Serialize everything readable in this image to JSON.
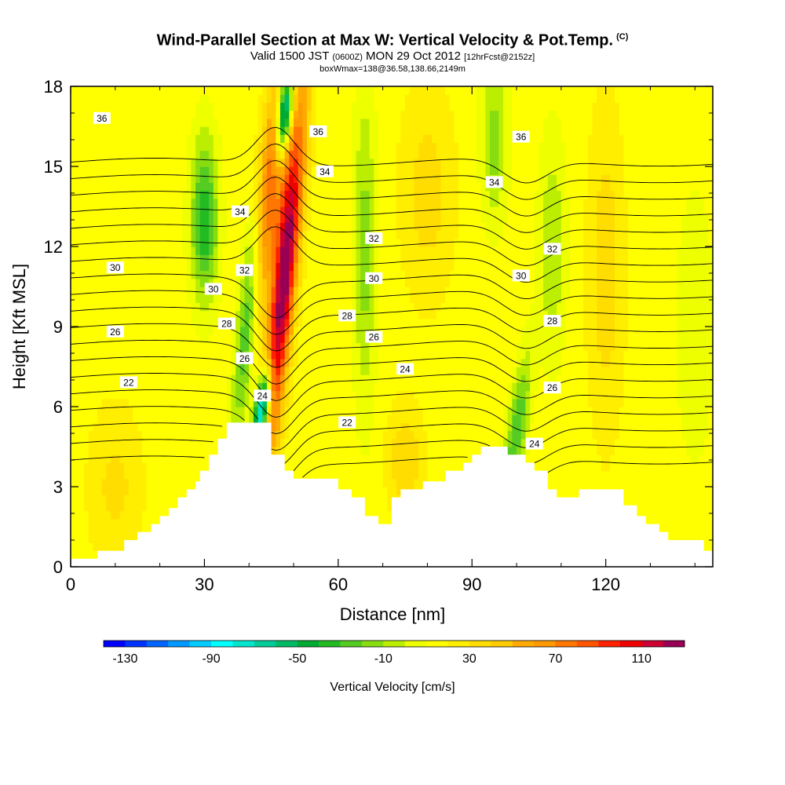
{
  "chart_data": {
    "type": "heatmap",
    "title": "Wind-Parallel Section at Max W: Vertical Velocity & Pot.Temp.",
    "copyright": "(C)",
    "subtitle_main": "Valid 1500 JST",
    "subtitle_utc": "(0600Z)",
    "subtitle_date": "MON 29 Oct 2012",
    "subtitle_fcst": "[12hrFcst@2152z]",
    "subtitle2": "boxWmax=138@36.58,138.66,2149m",
    "xlabel": "Distance [nm]",
    "ylabel": "Height [Kft MSL]",
    "xlim": [
      0,
      144
    ],
    "ylim": [
      0,
      18
    ],
    "xticks": [
      "0",
      "30",
      "60",
      "90",
      "120"
    ],
    "xtick_values": [
      0,
      30,
      60,
      90,
      120
    ],
    "yticks": [
      "0",
      "3",
      "6",
      "9",
      "12",
      "15",
      "18"
    ],
    "ytick_values": [
      0,
      3,
      6,
      9,
      12,
      15,
      18
    ],
    "colorbar": {
      "label": "Vertical Velocity [cm/s]",
      "range": [
        -140,
        130
      ],
      "step": 10,
      "tick_labels": [
        "-130",
        "-90",
        "-50",
        "-10",
        "30",
        "70",
        "110"
      ],
      "tick_values": [
        -130,
        -90,
        -50,
        -10,
        30,
        70,
        110
      ],
      "colors": [
        "#0000ff",
        "#0033ff",
        "#0066ff",
        "#0099ff",
        "#00ccff",
        "#00ffff",
        "#00e5cc",
        "#00cc99",
        "#00bb66",
        "#00aa33",
        "#22bb22",
        "#55cc22",
        "#88dd11",
        "#bbee00",
        "#eeff00",
        "#ffff00",
        "#ffee00",
        "#ffdd00",
        "#ffcc00",
        "#ffaa00",
        "#ff9900",
        "#ff7700",
        "#ff5500",
        "#ff2200",
        "#ee0000",
        "#cc0033",
        "#990055"
      ]
    },
    "contour_labels": [
      {
        "text": "36",
        "x": 7,
        "y": 16.8
      },
      {
        "text": "36",
        "x": 55.5,
        "y": 16.3
      },
      {
        "text": "36",
        "x": 101,
        "y": 16.1
      },
      {
        "text": "34",
        "x": 57,
        "y": 14.8
      },
      {
        "text": "34",
        "x": 95,
        "y": 14.4
      },
      {
        "text": "34",
        "x": 38,
        "y": 13.3
      },
      {
        "text": "32",
        "x": 68,
        "y": 12.3
      },
      {
        "text": "32",
        "x": 108,
        "y": 11.9
      },
      {
        "text": "32",
        "x": 39,
        "y": 11.1
      },
      {
        "text": "30",
        "x": 10,
        "y": 11.2
      },
      {
        "text": "30",
        "x": 32,
        "y": 10.4
      },
      {
        "text": "30",
        "x": 68,
        "y": 10.8
      },
      {
        "text": "30",
        "x": 101,
        "y": 10.9
      },
      {
        "text": "28",
        "x": 35,
        "y": 9.1
      },
      {
        "text": "28",
        "x": 62,
        "y": 9.4
      },
      {
        "text": "28",
        "x": 108,
        "y": 9.2
      },
      {
        "text": "26",
        "x": 10,
        "y": 8.8
      },
      {
        "text": "26",
        "x": 39,
        "y": 7.8
      },
      {
        "text": "26",
        "x": 68,
        "y": 8.6
      },
      {
        "text": "26",
        "x": 108,
        "y": 6.7
      },
      {
        "text": "24",
        "x": 43,
        "y": 6.4
      },
      {
        "text": "24",
        "x": 75,
        "y": 7.4
      },
      {
        "text": "24",
        "x": 104,
        "y": 4.6
      },
      {
        "text": "22",
        "x": 13,
        "y": 6.9
      },
      {
        "text": "22",
        "x": 62,
        "y": 5.4
      }
    ],
    "terrain_kft": [
      0.3,
      0.3,
      0.3,
      0.3,
      0.3,
      0.3,
      0.6,
      0.6,
      0.6,
      0.6,
      0.6,
      0.6,
      1.0,
      1.0,
      1.0,
      1.3,
      1.3,
      1.3,
      1.6,
      1.6,
      1.9,
      1.9,
      2.2,
      2.2,
      2.6,
      2.6,
      2.9,
      2.9,
      3.2,
      3.6,
      3.6,
      4.2,
      4.2,
      4.8,
      4.8,
      5.4,
      5.4,
      5.4,
      5.4,
      5.4,
      5.4,
      5.4,
      5.4,
      5.4,
      5.4,
      4.2,
      4.2,
      4.2,
      3.6,
      3.6,
      3.3,
      3.3,
      3.3,
      3.3,
      3.3,
      3.3,
      3.3,
      3.3,
      3.3,
      3.3,
      2.9,
      2.9,
      2.9,
      2.6,
      2.6,
      2.6,
      1.9,
      1.9,
      1.9,
      1.6,
      1.6,
      1.6,
      2.6,
      2.6,
      2.9,
      2.9,
      2.9,
      2.9,
      2.9,
      3.2,
      3.2,
      3.2,
      3.2,
      3.2,
      3.6,
      3.6,
      3.6,
      3.6,
      3.9,
      3.9,
      4.2,
      4.2,
      4.5,
      4.5,
      4.5,
      4.5,
      4.5,
      4.5,
      4.2,
      4.2,
      4.2,
      4.2,
      3.9,
      3.9,
      3.6,
      3.6,
      3.6,
      2.9,
      2.9,
      2.6,
      2.6,
      2.6,
      2.6,
      2.6,
      2.9,
      2.9,
      2.9,
      2.9,
      2.9,
      2.9,
      2.9,
      2.9,
      2.9,
      2.9,
      2.3,
      2.3,
      2.3,
      1.9,
      1.9,
      1.6,
      1.6,
      1.6,
      1.3,
      1.3,
      1.0,
      1.0,
      1.0,
      1.0,
      1.0,
      1.0,
      1.0,
      1.0,
      0.6,
      0.6,
      0.6,
      0.6
    ]
  }
}
